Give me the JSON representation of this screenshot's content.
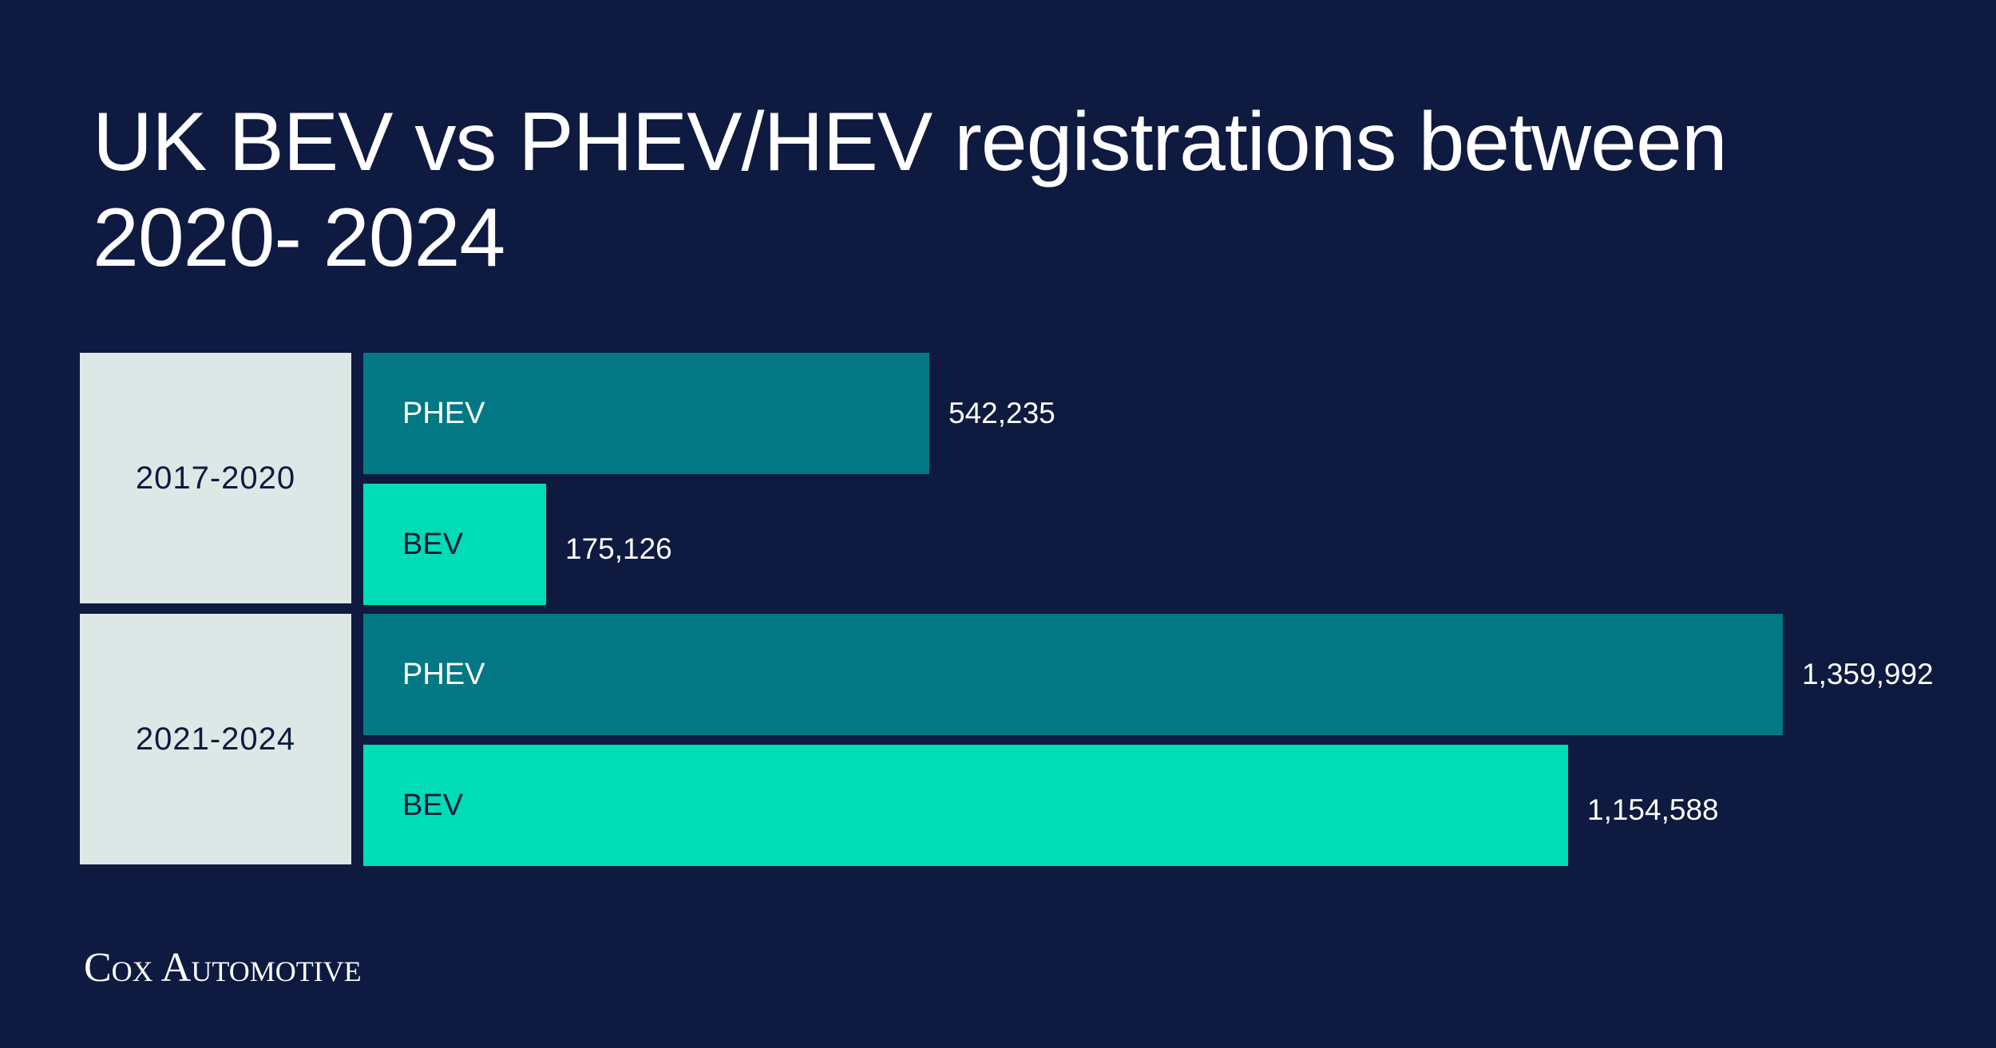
{
  "title_lines": [
    "UK BEV vs PHEV/HEV registrations between",
    "2020- 2024"
  ],
  "colors": {
    "background": "#0e1a40",
    "phev": "#017884",
    "bev": "#00dcb5",
    "group_box": "#dde8e6"
  },
  "brand": "Cox Automotive",
  "chart_data": {
    "type": "bar",
    "orientation": "horizontal",
    "title": "UK BEV vs PHEV/HEV registrations between 2020- 2024",
    "categories": [
      "2017-2020",
      "2021-2024"
    ],
    "series": [
      {
        "name": "PHEV",
        "values": [
          542235,
          1359992
        ],
        "labels": [
          "542,235",
          "1,359,992"
        ]
      },
      {
        "name": "BEV",
        "values": [
          175126,
          1154588
        ],
        "labels": [
          "175,126",
          "1,154,588"
        ]
      }
    ],
    "xlabel": "",
    "ylabel": "",
    "grid": false,
    "legend": "none"
  }
}
